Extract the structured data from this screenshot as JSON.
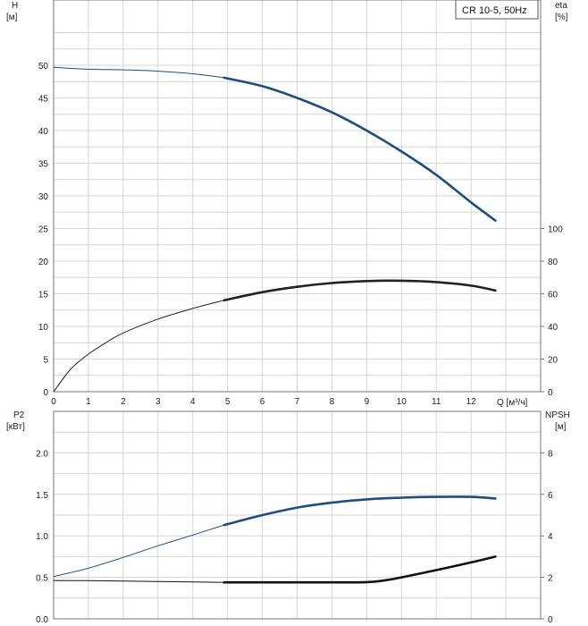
{
  "legend": "CR 10-5, 50Hz",
  "chart_data": [
    {
      "type": "line",
      "panel": "top",
      "x_label": "Q [м³/ч]",
      "x_ticks": [
        0,
        1,
        2,
        3,
        4,
        5,
        6,
        7,
        8,
        9,
        10,
        11,
        12
      ],
      "xlim": [
        0,
        14
      ],
      "y_left": {
        "label_line1": "H",
        "label_line2": "[м]",
        "ticks": [
          0,
          5,
          10,
          15,
          20,
          25,
          30,
          35,
          40,
          45,
          50
        ],
        "lim": [
          0,
          60
        ]
      },
      "y_right": {
        "label_line1": "eta",
        "label_line2": "[%]",
        "ticks": [
          0,
          20,
          40,
          60,
          80,
          100
        ],
        "lim": [
          0,
          240
        ]
      },
      "grid": true,
      "series": [
        {
          "axis": "left",
          "color": "#1c4e80",
          "x": [
            0,
            1,
            2,
            3,
            4,
            4.9,
            6,
            7,
            8,
            9,
            10,
            11,
            12,
            12.7
          ],
          "y": [
            49.7,
            49.4,
            49.3,
            49.1,
            48.7,
            48.1,
            46.8,
            45.0,
            42.8,
            40.0,
            36.8,
            33.2,
            29.0,
            26.2
          ],
          "operating_from": 4.9
        },
        {
          "axis": "right",
          "color": "#222222",
          "x": [
            0,
            0.5,
            1,
            1.5,
            2,
            3,
            4,
            4.9,
            6,
            7,
            8,
            9,
            10,
            11,
            12,
            12.7
          ],
          "y": [
            0,
            14,
            23,
            30,
            36,
            44.5,
            51,
            56,
            61,
            64.3,
            66.6,
            67.8,
            68.0,
            67.2,
            65.0,
            62.0
          ],
          "operating_from": 4.9
        }
      ]
    },
    {
      "type": "line",
      "panel": "bottom",
      "xlim": [
        0,
        14
      ],
      "y_left": {
        "label_line1": "P2",
        "label_line2": "[кВт]",
        "ticks": [
          "0.0",
          "0.5",
          "1.0",
          "1.5",
          "2.0"
        ],
        "lim": [
          0,
          2.5
        ]
      },
      "y_right": {
        "label_line1": "NPSH",
        "label_line2": "[м]",
        "ticks": [
          0,
          2,
          4,
          6,
          8
        ],
        "lim": [
          0,
          10
        ]
      },
      "grid": true,
      "series": [
        {
          "axis": "left",
          "color": "#1c4e80",
          "x": [
            0,
            1,
            2,
            3,
            4,
            4.9,
            6,
            7,
            8,
            9,
            10,
            11,
            12,
            12.7
          ],
          "y": [
            0.51,
            0.61,
            0.74,
            0.88,
            1.01,
            1.13,
            1.25,
            1.34,
            1.4,
            1.44,
            1.46,
            1.47,
            1.47,
            1.45
          ],
          "operating_from": 4.9
        },
        {
          "axis": "right",
          "color": "#111111",
          "x": [
            0,
            1,
            2,
            3,
            4,
            4.9,
            6,
            7,
            8,
            9,
            9.5,
            10,
            11,
            12,
            12.7
          ],
          "y": [
            1.85,
            1.84,
            1.82,
            1.8,
            1.78,
            1.76,
            1.76,
            1.76,
            1.76,
            1.77,
            1.85,
            2.0,
            2.35,
            2.72,
            3.0
          ],
          "operating_from": 4.9
        }
      ]
    }
  ]
}
